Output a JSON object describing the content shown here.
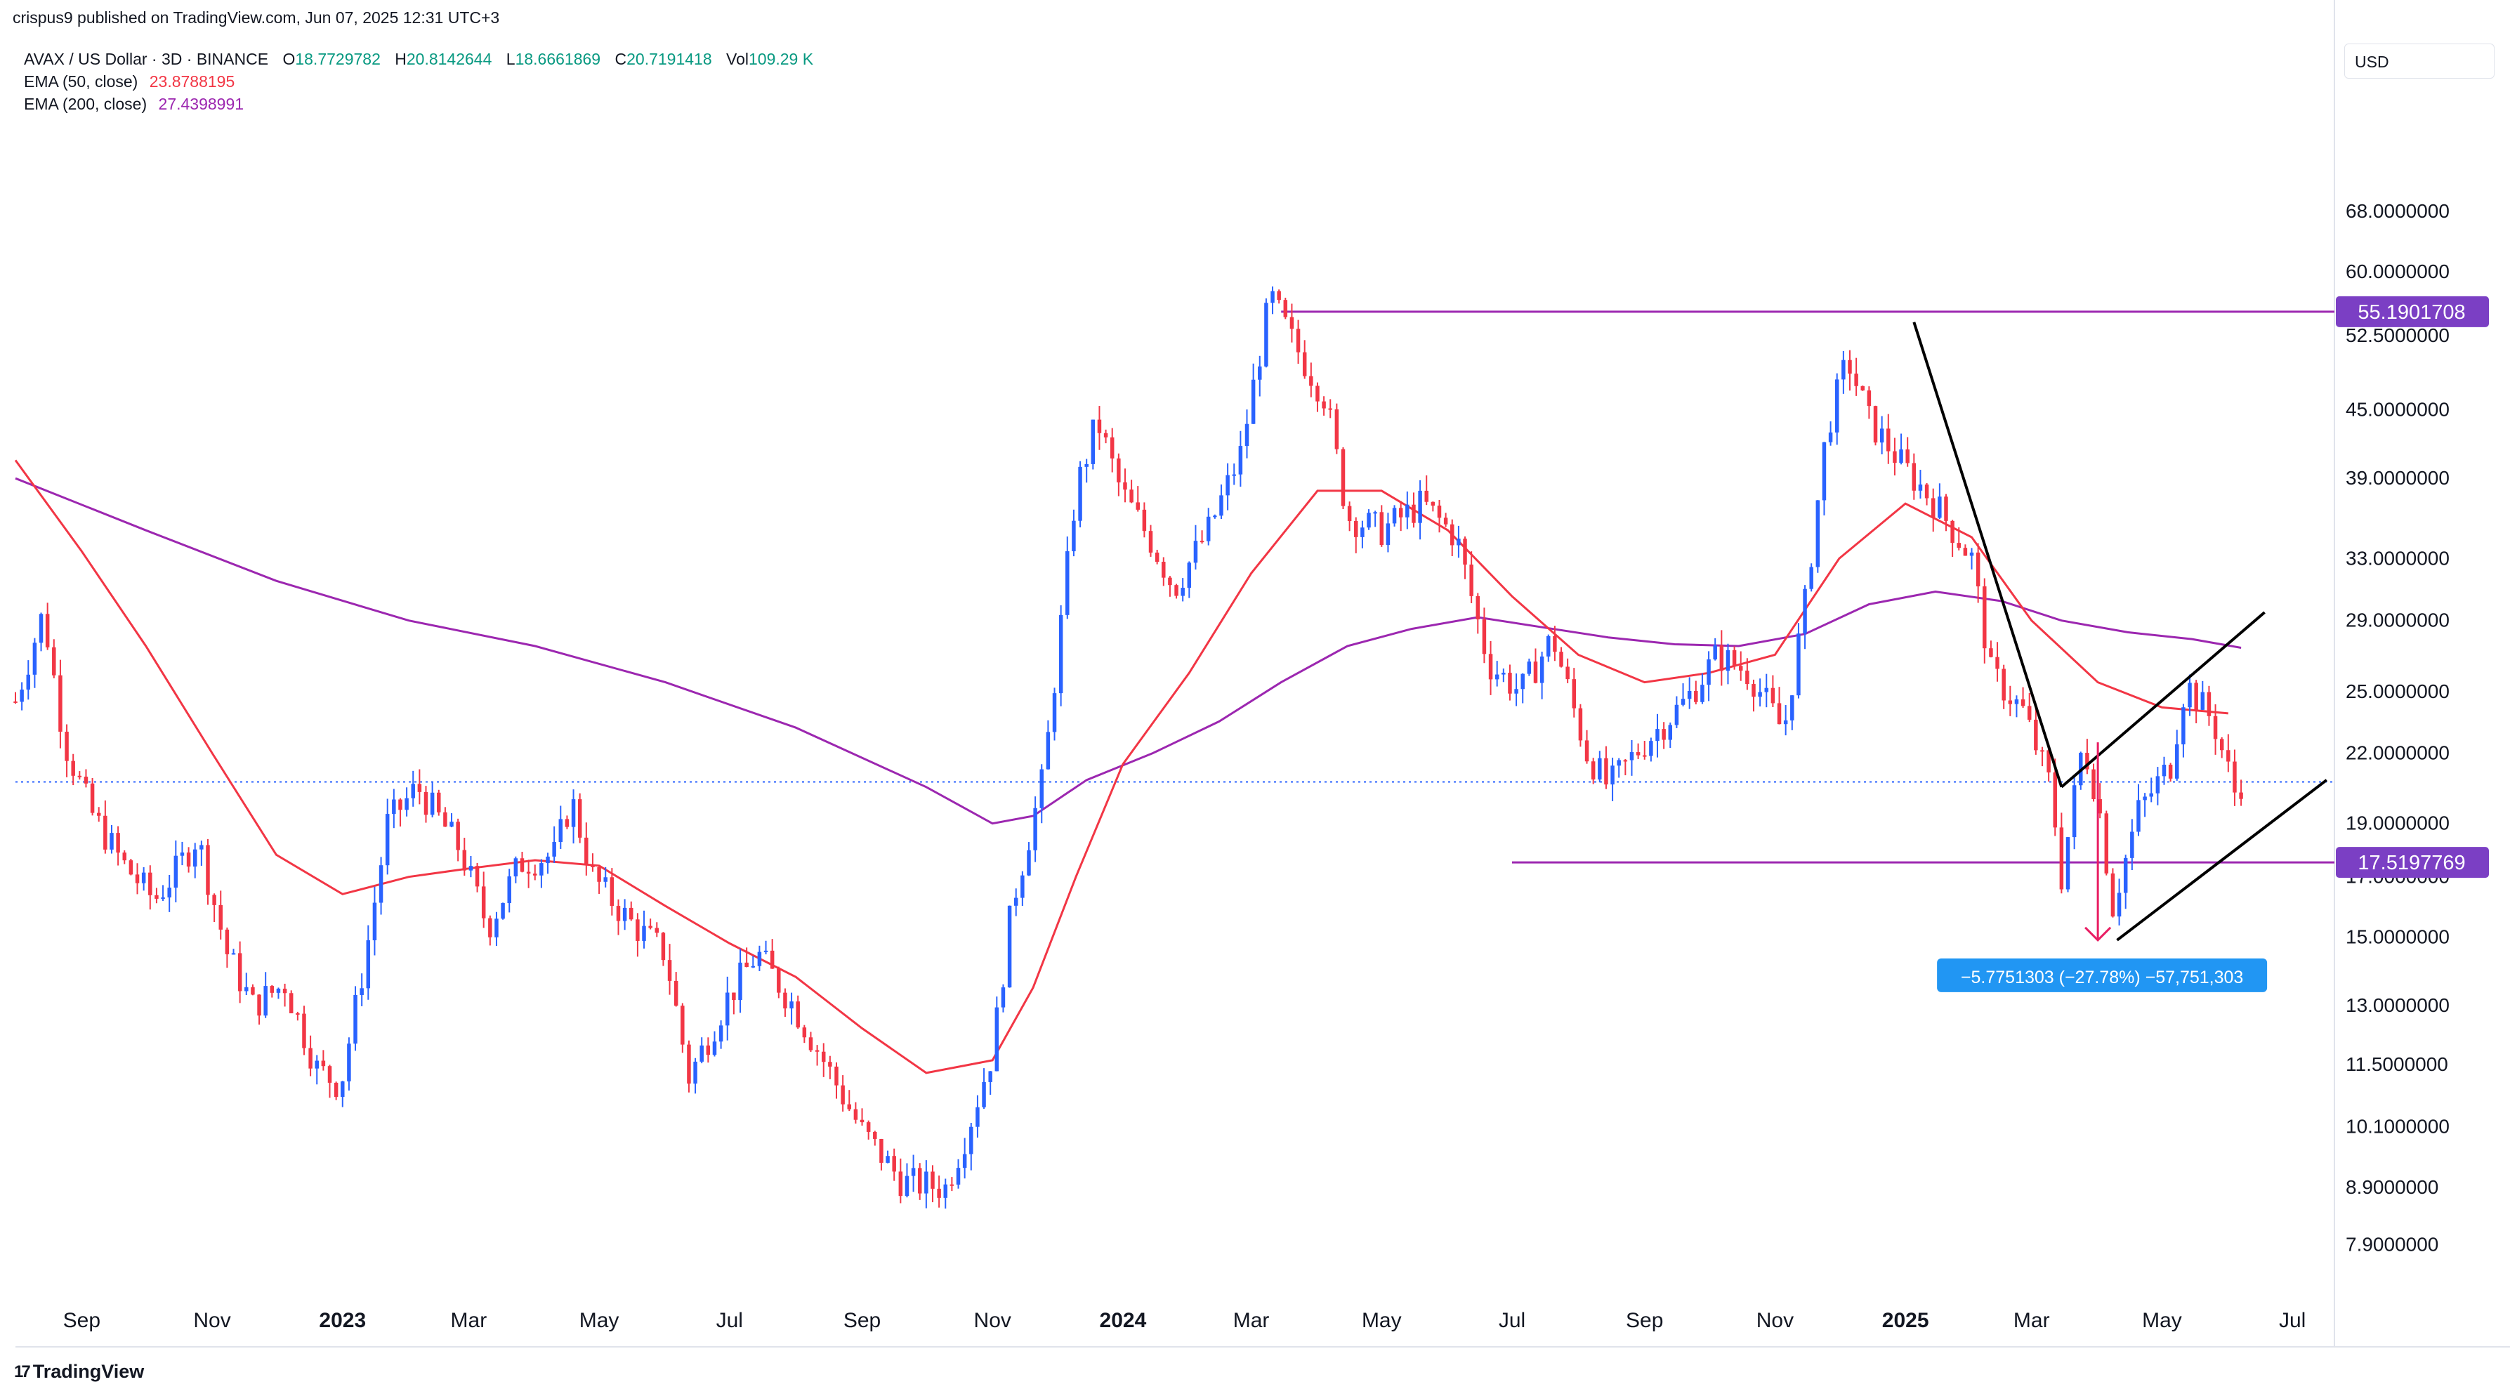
{
  "header": {
    "published": "crispus9 published on TradingView.com, Jun 07, 2025 12:31 UTC+3"
  },
  "legend": {
    "symbol": "AVAX / US Dollar · 3D · BINANCE",
    "open_key": "O",
    "open": "18.7729782",
    "high_key": "H",
    "high": "20.8142644",
    "low_key": "L",
    "low": "18.6661869",
    "close_key": "C",
    "close": "20.7191418",
    "vol_key": "Vol",
    "vol": "109.29 K",
    "ema50_label": "EMA (50, close)",
    "ema50_value": "23.8788195",
    "ema200_label": "EMA (200, close)",
    "ema200_value": "27.4398991"
  },
  "currency": "USD",
  "footer": {
    "brand": "TradingView",
    "logo_glyph": "17"
  },
  "chart_data": {
    "type": "candlestick",
    "y_scale": "log",
    "y_range": [
      6.9,
      88
    ],
    "x_range": [
      "2022-08-01",
      "2025-07-20"
    ],
    "y_ticks": [
      "68.0000000",
      "60.0000000",
      "52.5000000",
      "45.0000000",
      "39.0000000",
      "33.0000000",
      "29.0000000",
      "25.0000000",
      "22.0000000",
      "19.0000000",
      "17.0000000",
      "15.0000000",
      "13.0000000",
      "11.5000000",
      "10.1000000",
      "8.9000000",
      "7.9000000"
    ],
    "x_ticks": [
      {
        "date": "2022-09-01",
        "label": "Sep",
        "bold": false
      },
      {
        "date": "2022-11-01",
        "label": "Nov",
        "bold": false
      },
      {
        "date": "2023-01-01",
        "label": "2023",
        "bold": true
      },
      {
        "date": "2023-03-01",
        "label": "Mar",
        "bold": false
      },
      {
        "date": "2023-05-01",
        "label": "May",
        "bold": false
      },
      {
        "date": "2023-07-01",
        "label": "Jul",
        "bold": false
      },
      {
        "date": "2023-09-01",
        "label": "Sep",
        "bold": false
      },
      {
        "date": "2023-11-01",
        "label": "Nov",
        "bold": false
      },
      {
        "date": "2024-01-01",
        "label": "2024",
        "bold": true
      },
      {
        "date": "2024-03-01",
        "label": "Mar",
        "bold": false
      },
      {
        "date": "2024-05-01",
        "label": "May",
        "bold": false
      },
      {
        "date": "2024-07-01",
        "label": "Jul",
        "bold": false
      },
      {
        "date": "2024-09-01",
        "label": "Sep",
        "bold": false
      },
      {
        "date": "2024-11-01",
        "label": "Nov",
        "bold": false
      },
      {
        "date": "2025-01-01",
        "label": "2025",
        "bold": true
      },
      {
        "date": "2025-03-01",
        "label": "Mar",
        "bold": false
      },
      {
        "date": "2025-05-01",
        "label": "May",
        "bold": false
      },
      {
        "date": "2025-07-01",
        "label": "Jul",
        "bold": false
      }
    ],
    "price_path": [
      [
        "2022-08-01",
        24.5
      ],
      [
        "2022-08-14",
        29.5
      ],
      [
        "2022-08-24",
        22.5
      ],
      [
        "2022-09-05",
        19.5
      ],
      [
        "2022-09-20",
        17.5
      ],
      [
        "2022-10-05",
        16.2
      ],
      [
        "2022-10-15",
        17.2
      ],
      [
        "2022-10-25",
        18.5
      ],
      [
        "2022-11-08",
        14.5
      ],
      [
        "2022-11-20",
        13.0
      ],
      [
        "2022-12-05",
        13.6
      ],
      [
        "2022-12-20",
        11.4
      ],
      [
        "2022-12-31",
        11.0
      ],
      [
        "2023-01-12",
        14.5
      ],
      [
        "2023-01-22",
        19.0
      ],
      [
        "2023-02-05",
        20.5
      ],
      [
        "2023-02-25",
        18.0
      ],
      [
        "2023-03-10",
        15.3
      ],
      [
        "2023-03-25",
        17.5
      ],
      [
        "2023-04-10",
        17.8
      ],
      [
        "2023-04-18",
        20.0
      ],
      [
        "2023-04-28",
        17.0
      ],
      [
        "2023-05-15",
        15.5
      ],
      [
        "2023-06-01",
        14.5
      ],
      [
        "2023-06-12",
        11.2
      ],
      [
        "2023-06-30",
        13.2
      ],
      [
        "2023-07-14",
        14.5
      ],
      [
        "2023-07-31",
        13.0
      ],
      [
        "2023-08-15",
        11.5
      ],
      [
        "2023-09-01",
        10.0
      ],
      [
        "2023-09-20",
        9.0
      ],
      [
        "2023-10-10",
        8.9
      ],
      [
        "2023-10-20",
        10.0
      ],
      [
        "2023-11-01",
        11.8
      ],
      [
        "2023-11-10",
        16.0
      ],
      [
        "2023-11-25",
        21.0
      ],
      [
        "2023-12-10",
        38.0
      ],
      [
        "2023-12-20",
        44.0
      ],
      [
        "2023-12-31",
        38.0
      ],
      [
        "2024-01-15",
        34.0
      ],
      [
        "2024-01-25",
        31.0
      ],
      [
        "2024-02-10",
        35.0
      ],
      [
        "2024-02-25",
        41.0
      ],
      [
        "2024-03-10",
        57.0
      ],
      [
        "2024-03-20",
        52.0
      ],
      [
        "2024-04-05",
        46.0
      ],
      [
        "2024-04-15",
        36.0
      ],
      [
        "2024-05-01",
        35.0
      ],
      [
        "2024-05-20",
        37.0
      ],
      [
        "2024-06-05",
        34.5
      ],
      [
        "2024-06-20",
        26.5
      ],
      [
        "2024-07-05",
        25.0
      ],
      [
        "2024-07-20",
        28.0
      ],
      [
        "2024-08-05",
        22.0
      ],
      [
        "2024-08-15",
        20.5
      ],
      [
        "2024-09-01",
        22.5
      ],
      [
        "2024-09-20",
        24.5
      ],
      [
        "2024-10-05",
        27.0
      ],
      [
        "2024-10-20",
        26.0
      ],
      [
        "2024-11-05",
        23.0
      ],
      [
        "2024-11-15",
        30.0
      ],
      [
        "2024-11-25",
        43.0
      ],
      [
        "2024-12-05",
        50.0
      ],
      [
        "2024-12-15",
        44.0
      ],
      [
        "2024-12-31",
        40.0
      ],
      [
        "2025-01-15",
        37.0
      ],
      [
        "2025-02-01",
        33.0
      ],
      [
        "2025-02-10",
        26.0
      ],
      [
        "2025-02-25",
        24.0
      ],
      [
        "2025-03-10",
        20.5
      ],
      [
        "2025-03-15",
        17.0
      ],
      [
        "2025-03-25",
        22.5
      ],
      [
        "2025-04-01",
        20.0
      ],
      [
        "2025-04-08",
        16.0
      ],
      [
        "2025-04-20",
        19.5
      ],
      [
        "2025-05-05",
        21.5
      ],
      [
        "2025-05-12",
        25.5
      ],
      [
        "2025-05-25",
        23.5
      ],
      [
        "2025-06-05",
        20.0
      ],
      [
        "2025-06-07",
        20.7
      ]
    ],
    "ema50": [
      [
        "2022-08-01",
        40.5
      ],
      [
        "2022-09-01",
        33.5
      ],
      [
        "2022-10-01",
        27.5
      ],
      [
        "2022-11-01",
        22.0
      ],
      [
        "2022-12-01",
        17.8
      ],
      [
        "2023-01-01",
        16.4
      ],
      [
        "2023-02-01",
        17.0
      ],
      [
        "2023-03-01",
        17.3
      ],
      [
        "2023-04-01",
        17.6
      ],
      [
        "2023-05-01",
        17.4
      ],
      [
        "2023-06-01",
        16.0
      ],
      [
        "2023-07-01",
        14.8
      ],
      [
        "2023-08-01",
        13.8
      ],
      [
        "2023-09-01",
        12.4
      ],
      [
        "2023-10-01",
        11.3
      ],
      [
        "2023-11-01",
        11.6
      ],
      [
        "2023-11-20",
        13.5
      ],
      [
        "2023-12-10",
        17.0
      ],
      [
        "2024-01-01",
        21.5
      ],
      [
        "2024-02-01",
        26.0
      ],
      [
        "2024-03-01",
        32.0
      ],
      [
        "2024-04-01",
        38.0
      ],
      [
        "2024-05-01",
        38.0
      ],
      [
        "2024-06-01",
        35.0
      ],
      [
        "2024-07-01",
        30.5
      ],
      [
        "2024-08-01",
        27.0
      ],
      [
        "2024-09-01",
        25.5
      ],
      [
        "2024-10-01",
        26.0
      ],
      [
        "2024-11-01",
        27.0
      ],
      [
        "2024-12-01",
        33.0
      ],
      [
        "2025-01-01",
        37.0
      ],
      [
        "2025-02-01",
        34.5
      ],
      [
        "2025-03-01",
        29.0
      ],
      [
        "2025-04-01",
        25.5
      ],
      [
        "2025-05-01",
        24.2
      ],
      [
        "2025-06-01",
        23.9
      ]
    ],
    "ema200": [
      [
        "2022-08-01",
        39.0
      ],
      [
        "2022-10-01",
        35.0
      ],
      [
        "2022-12-01",
        31.5
      ],
      [
        "2023-02-01",
        29.0
      ],
      [
        "2023-04-01",
        27.5
      ],
      [
        "2023-06-01",
        25.5
      ],
      [
        "2023-08-01",
        23.2
      ],
      [
        "2023-10-01",
        20.5
      ],
      [
        "2023-11-01",
        19.0
      ],
      [
        "2023-11-20",
        19.3
      ],
      [
        "2023-12-15",
        20.8
      ],
      [
        "2024-01-15",
        22.0
      ],
      [
        "2024-02-15",
        23.5
      ],
      [
        "2024-03-15",
        25.5
      ],
      [
        "2024-04-15",
        27.5
      ],
      [
        "2024-05-15",
        28.5
      ],
      [
        "2024-06-15",
        29.2
      ],
      [
        "2024-07-15",
        28.6
      ],
      [
        "2024-08-15",
        28.0
      ],
      [
        "2024-09-15",
        27.6
      ],
      [
        "2024-10-15",
        27.5
      ],
      [
        "2024-11-15",
        28.2
      ],
      [
        "2024-12-15",
        30.0
      ],
      [
        "2025-01-15",
        30.8
      ],
      [
        "2025-02-15",
        30.2
      ],
      [
        "2025-03-15",
        29.0
      ],
      [
        "2025-04-15",
        28.3
      ],
      [
        "2025-05-15",
        27.9
      ],
      [
        "2025-06-07",
        27.4
      ]
    ],
    "horizontal_lines": [
      {
        "price": 55.1901708,
        "from": "2024-03-15",
        "label": "55.1901708"
      },
      {
        "price": 17.5197769,
        "from": "2024-07-01",
        "label": "17.5197769"
      }
    ],
    "current_price": 20.7191418,
    "trend_lines": [
      [
        [
          "2025-01-05",
          54.0
        ],
        [
          "2025-03-15",
          20.5
        ]
      ],
      [
        [
          "2025-03-15",
          20.5
        ],
        [
          "2025-06-18",
          29.5
        ]
      ],
      [
        [
          "2025-04-10",
          14.9
        ],
        [
          "2025-07-17",
          20.8
        ]
      ]
    ],
    "measure": {
      "from": [
        "2025-04-01",
        22.5
      ],
      "to": [
        "2025-04-01",
        14.9
      ],
      "label": "−5.7751303 (−27.78%) −57,751,303"
    },
    "colors": {
      "up": "#2962ff",
      "down": "#f23645",
      "ema50": "#f23645",
      "ema200": "#9c27b0",
      "hline": "#9c27b0",
      "label_bg": "#7b3fc4",
      "measure": "#2196f3"
    }
  }
}
